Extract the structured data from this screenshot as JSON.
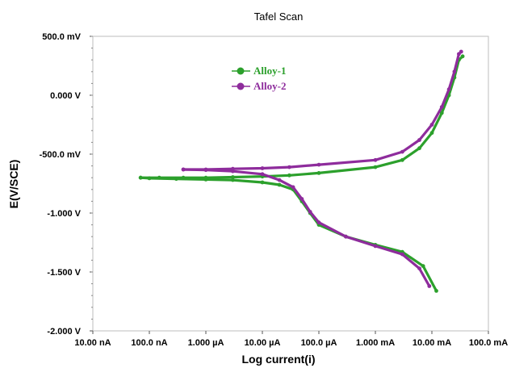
{
  "chart_data": {
    "type": "scatter",
    "title": "Tafel Scan",
    "xlabel": "Log current(i)",
    "ylabel": "E(V/SCE)",
    "x_scale": "log",
    "xlim_amps": [
      1e-08,
      0.1
    ],
    "ylim_volts": [
      -2.0,
      0.5
    ],
    "x_tick_labels": [
      "10.00 nA",
      "100.0 nA",
      "1.000 µA",
      "10.00 µA",
      "100.0 µA",
      "1.000 mA",
      "10.00 mA",
      "100.0 mA"
    ],
    "y_tick_labels": [
      "500.0 mV",
      "0.000 V",
      "-500.0 mV",
      "-1.000 V",
      "-1.500 V",
      "-2.000 V"
    ],
    "legend_position": "top-left",
    "grid": false,
    "series": [
      {
        "name": "Alloy-1",
        "color": "#2ca02c",
        "anodic": [
          [
            7e-08,
            -0.7
          ],
          [
            1.5e-07,
            -0.7
          ],
          [
            4e-07,
            -0.7
          ],
          [
            1e-06,
            -0.7
          ],
          [
            3e-06,
            -0.695
          ],
          [
            1e-05,
            -0.69
          ],
          [
            3e-05,
            -0.68
          ],
          [
            0.0001,
            -0.66
          ],
          [
            0.001,
            -0.61
          ],
          [
            0.003,
            -0.55
          ],
          [
            0.006,
            -0.45
          ],
          [
            0.01,
            -0.32
          ],
          [
            0.015,
            -0.15
          ],
          [
            0.02,
            0.0
          ],
          [
            0.025,
            0.15
          ],
          [
            0.03,
            0.3
          ],
          [
            0.035,
            0.33
          ]
        ],
        "cathodic": [
          [
            7e-08,
            -0.7
          ],
          [
            1e-07,
            -0.705
          ],
          [
            3e-07,
            -0.71
          ],
          [
            1e-06,
            -0.715
          ],
          [
            3e-06,
            -0.72
          ],
          [
            1e-05,
            -0.74
          ],
          [
            2e-05,
            -0.76
          ],
          [
            3.5e-05,
            -0.8
          ],
          [
            5e-05,
            -0.9
          ],
          [
            7e-05,
            -1.0
          ],
          [
            0.0001,
            -1.1
          ],
          [
            0.0003,
            -1.2
          ],
          [
            0.001,
            -1.27
          ],
          [
            0.003,
            -1.33
          ],
          [
            0.007,
            -1.45
          ],
          [
            0.012,
            -1.66
          ]
        ]
      },
      {
        "name": "Alloy-2",
        "color": "#8e2c9c",
        "anodic": [
          [
            4e-07,
            -0.63
          ],
          [
            1e-06,
            -0.63
          ],
          [
            3e-06,
            -0.625
          ],
          [
            1e-05,
            -0.62
          ],
          [
            3e-05,
            -0.61
          ],
          [
            0.0001,
            -0.59
          ],
          [
            0.001,
            -0.55
          ],
          [
            0.003,
            -0.48
          ],
          [
            0.006,
            -0.38
          ],
          [
            0.01,
            -0.25
          ],
          [
            0.015,
            -0.1
          ],
          [
            0.02,
            0.05
          ],
          [
            0.025,
            0.2
          ],
          [
            0.03,
            0.35
          ],
          [
            0.033,
            0.37
          ]
        ],
        "cathodic": [
          [
            4e-07,
            -0.63
          ],
          [
            1e-06,
            -0.635
          ],
          [
            3e-06,
            -0.645
          ],
          [
            1e-05,
            -0.67
          ],
          [
            2e-05,
            -0.72
          ],
          [
            3.5e-05,
            -0.78
          ],
          [
            5e-05,
            -0.88
          ],
          [
            7e-05,
            -0.99
          ],
          [
            0.0001,
            -1.08
          ],
          [
            0.0003,
            -1.2
          ],
          [
            0.001,
            -1.28
          ],
          [
            0.003,
            -1.35
          ],
          [
            0.006,
            -1.47
          ],
          [
            0.009,
            -1.62
          ]
        ]
      }
    ]
  }
}
